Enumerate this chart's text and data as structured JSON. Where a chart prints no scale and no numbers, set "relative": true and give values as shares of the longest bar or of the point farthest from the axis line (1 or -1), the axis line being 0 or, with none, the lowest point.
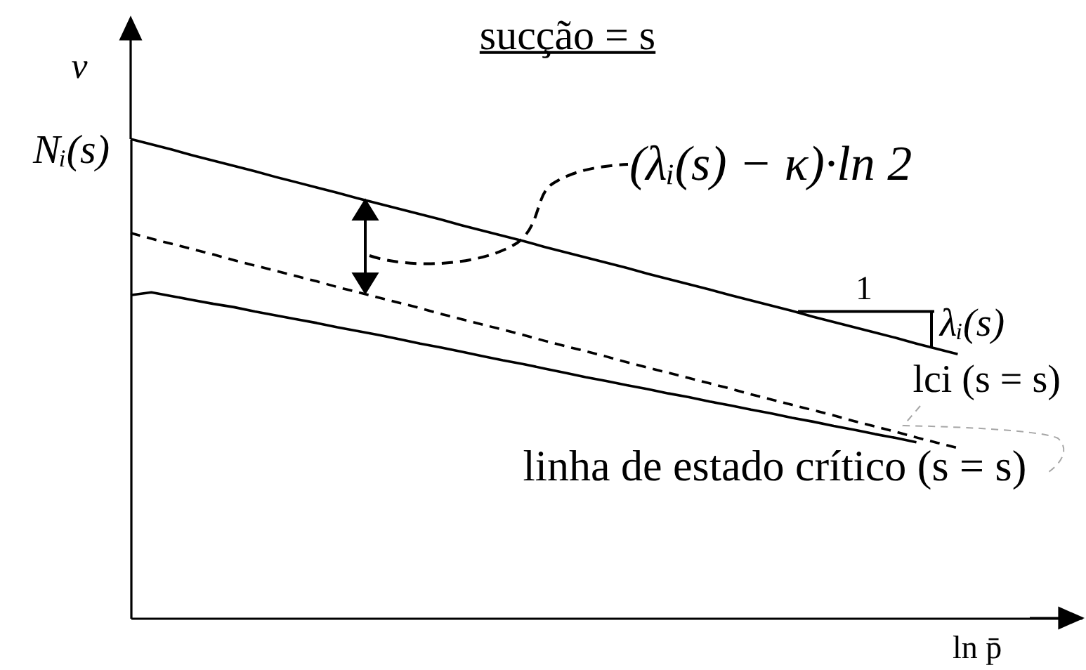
{
  "chart_data": {
    "type": "line",
    "title": "sucção = s",
    "xlabel": "ln p̄",
    "ylabel": "v",
    "relative": true,
    "categories": [
      null,
      null,
      null,
      null,
      null,
      null,
      null,
      null,
      null,
      null,
      null,
      null,
      null,
      null,
      null,
      null,
      null,
      null,
      null,
      null,
      null,
      null,
      null,
      null,
      null,
      null,
      null,
      null,
      null,
      null,
      null,
      null,
      null,
      null,
      null,
      null,
      null,
      null,
      null,
      null,
      null,
      null,
      null,
      null,
      null,
      null,
      null
    ],
    "series": [
      {
        "name": "lci (s = s)",
        "color": "#000000",
        "values": [
          1,
          0.989,
          0.978,
          0.966,
          0.955,
          0.944,
          0.933,
          0.921,
          0.91,
          0.899,
          0.888,
          0.876,
          0.865,
          0.854,
          0.843,
          0.832,
          0.82,
          0.809,
          0.798,
          0.787,
          0.775,
          0.764,
          0.753,
          0.742,
          0.731,
          0.719,
          0.708,
          0.697,
          0.686,
          0.674,
          0.663,
          0.652,
          0.641,
          0.629,
          0.618,
          0.607,
          0.596,
          0.585,
          0.573,
          0.562,
          0.551,
          null,
          null,
          null,
          null,
          null,
          null
        ]
      },
      {
        "name": "linha de estado crítico (s = s)",
        "color": "#000000",
        "line_style": "dashed",
        "values": [
          0.804,
          0.792,
          0.781,
          0.77,
          0.759,
          0.747,
          0.736,
          0.725,
          0.714,
          0.703,
          0.691,
          0.68,
          0.669,
          0.658,
          0.647,
          0.635,
          0.624,
          0.613,
          0.602,
          0.591,
          0.579,
          0.568,
          0.557,
          0.546,
          0.534,
          0.523,
          0.512,
          0.501,
          0.49,
          0.479,
          0.467,
          0.456,
          0.445,
          0.434,
          0.423,
          0.411,
          0.4,
          0.389,
          0.377,
          0.366,
          0.355,
          null,
          null,
          null,
          null,
          null,
          null
        ]
      },
      {
        "color": "#000000",
        "values": [
          0.674,
          0.68,
          0.672,
          0.664,
          0.656,
          0.649,
          0.64,
          0.632,
          0.624,
          0.616,
          0.607,
          0.599,
          0.591,
          0.582,
          0.573,
          0.565,
          0.556,
          0.547,
          0.538,
          0.53,
          0.521,
          0.512,
          0.503,
          0.495,
          0.486,
          0.478,
          0.469,
          0.461,
          0.452,
          0.444,
          0.435,
          0.427,
          0.418,
          0.41,
          0.401,
          0.393,
          0.384,
          0.376,
          0.367,
          null,
          null,
          null,
          null,
          null,
          null,
          null,
          null
        ]
      }
    ],
    "annotations": [
      "Nᵢ(s)",
      "(λᵢ(s) − κ)·ln 2",
      "1",
      "λᵢ(s)"
    ]
  }
}
